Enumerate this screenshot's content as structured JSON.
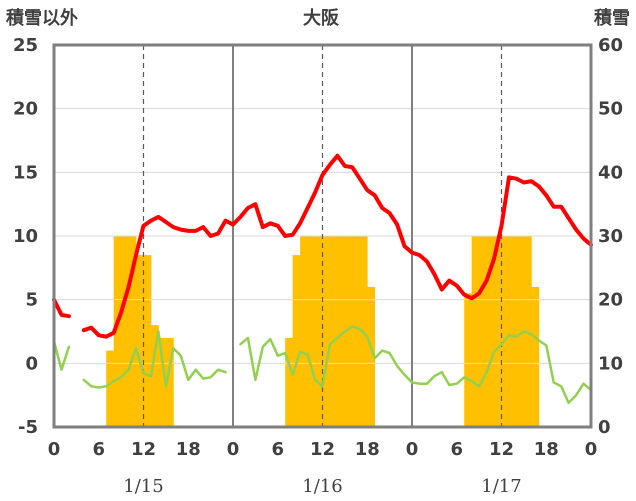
{
  "chart_data": {
    "type": "line",
    "title": "大阪",
    "y_left_label": "積雪以外",
    "y_right_label": "積雪",
    "y_left_range": [
      -5,
      25
    ],
    "y_right_range": [
      0,
      60
    ],
    "y_left_ticks": [
      "-5",
      "0",
      "5",
      "10",
      "15",
      "20",
      "25"
    ],
    "y_right_ticks": [
      "0",
      "10",
      "20",
      "30",
      "40",
      "50",
      "60"
    ],
    "x_tick_labels": [
      "0",
      "6",
      "12",
      "18",
      "0",
      "6",
      "12",
      "18",
      "0",
      "6",
      "12",
      "18",
      "0"
    ],
    "date_labels": [
      "1/15",
      "1/16",
      "1/17"
    ],
    "x_range_hours": [
      0,
      72
    ],
    "grid": "dashed verticals at 12h, solid day dividers",
    "colors": {
      "temperature": "#ff0000",
      "humidity_like": "#92d050",
      "snow": "#ffc000",
      "baseline": "#7030a0",
      "frame": "#7f7f7f"
    },
    "series": [
      {
        "style": "line",
        "axis": "left",
        "color": "#ff0000",
        "points": [
          [
            0,
            5
          ],
          [
            1,
            3.8
          ],
          [
            2,
            3.7
          ],
          [
            null,
            null
          ],
          [
            4,
            2.6
          ],
          [
            5,
            2.8
          ],
          [
            6,
            2.2
          ],
          [
            7,
            2.1
          ],
          [
            8,
            2.4
          ],
          [
            9,
            4
          ],
          [
            10,
            6
          ],
          [
            11,
            8.5
          ],
          [
            12,
            10.8
          ],
          [
            13,
            11.2
          ],
          [
            14,
            11.5
          ],
          [
            15,
            11.1
          ],
          [
            16,
            10.7
          ],
          [
            17,
            10.5
          ],
          [
            18,
            10.4
          ],
          [
            19,
            10.4
          ],
          [
            20,
            10.7
          ],
          [
            21,
            10
          ],
          [
            22,
            10.2
          ],
          [
            23,
            11.2
          ],
          [
            24,
            10.9
          ],
          [
            25,
            11.5
          ],
          [
            26,
            12.2
          ],
          [
            27,
            12.5
          ],
          [
            28,
            10.7
          ],
          [
            29,
            11
          ],
          [
            30,
            10.8
          ],
          [
            31,
            10
          ],
          [
            32,
            10.1
          ],
          [
            33,
            11
          ],
          [
            34,
            12.2
          ],
          [
            35,
            13.4
          ],
          [
            36,
            14.8
          ],
          [
            37,
            15.6
          ],
          [
            38,
            16.3
          ],
          [
            39,
            15.5
          ],
          [
            40,
            15.4
          ],
          [
            41,
            14.5
          ],
          [
            42,
            13.6
          ],
          [
            43,
            13.2
          ],
          [
            44,
            12.2
          ],
          [
            45,
            11.8
          ],
          [
            46,
            10.9
          ],
          [
            47,
            9.2
          ],
          [
            48,
            8.7
          ],
          [
            49,
            8.5
          ],
          [
            50,
            8
          ],
          [
            51,
            7
          ],
          [
            52,
            5.8
          ],
          [
            53,
            6.5
          ],
          [
            54,
            6.1
          ],
          [
            55,
            5.4
          ],
          [
            56,
            5.1
          ],
          [
            57,
            5.5
          ],
          [
            58,
            6.5
          ],
          [
            59,
            8.2
          ],
          [
            60,
            10.8
          ],
          [
            61,
            14.6
          ],
          [
            62,
            14.5
          ],
          [
            63,
            14.2
          ],
          [
            64,
            14.3
          ],
          [
            65,
            13.9
          ],
          [
            66,
            13.2
          ],
          [
            67,
            12.3
          ],
          [
            68,
            12.3
          ],
          [
            69,
            11.4
          ],
          [
            70,
            10.5
          ],
          [
            71,
            9.8
          ],
          [
            72,
            9.3
          ]
        ]
      },
      {
        "style": "line",
        "axis": "left",
        "color": "#92d050",
        "points": [
          [
            0,
            1.7
          ],
          [
            1,
            -0.5
          ],
          [
            2,
            1.3
          ],
          [
            null,
            null
          ],
          [
            4,
            -1.3
          ],
          [
            5,
            -1.8
          ],
          [
            6,
            -1.9
          ],
          [
            7,
            -1.8
          ],
          [
            8,
            -1.4
          ],
          [
            9,
            -1.1
          ],
          [
            10,
            -0.5
          ],
          [
            11,
            1.2
          ],
          [
            12,
            -0.8
          ],
          [
            13,
            -1
          ],
          [
            14,
            2.5
          ],
          [
            15,
            -1.8
          ],
          [
            16,
            1.2
          ],
          [
            17,
            0.6
          ],
          [
            18,
            -1.3
          ],
          [
            19,
            -0.5
          ],
          [
            20,
            -1.2
          ],
          [
            21,
            -1.1
          ],
          [
            22,
            -0.5
          ],
          [
            23,
            -0.7
          ],
          [
            null,
            null
          ],
          [
            25,
            1.5
          ],
          [
            26,
            2
          ],
          [
            27,
            -1.3
          ],
          [
            28,
            1.3
          ],
          [
            29,
            1.9
          ],
          [
            30,
            0.6
          ],
          [
            31,
            0.8
          ],
          [
            32,
            -0.9
          ],
          [
            33,
            0.9
          ],
          [
            34,
            0.7
          ],
          [
            35,
            -1.3
          ],
          [
            36,
            -1.8
          ],
          [
            37,
            1.5
          ],
          [
            38,
            2
          ],
          [
            39,
            2.5
          ],
          [
            40,
            2.9
          ],
          [
            41,
            2.7
          ],
          [
            42,
            2.1
          ],
          [
            43,
            0.4
          ],
          [
            44,
            1
          ],
          [
            45,
            0.8
          ],
          [
            46,
            -0.2
          ],
          [
            47,
            -0.9
          ],
          [
            48,
            -1.5
          ],
          [
            49,
            -1.6
          ],
          [
            50,
            -1.6
          ],
          [
            51,
            -1
          ],
          [
            52,
            -0.7
          ],
          [
            53,
            -1.7
          ],
          [
            54,
            -1.6
          ],
          [
            55,
            -1.1
          ],
          [
            56,
            -1.4
          ],
          [
            57,
            -1.8
          ],
          [
            58,
            -0.7
          ],
          [
            59,
            0.9
          ],
          [
            60,
            1.5
          ],
          [
            61,
            2.2
          ],
          [
            62,
            2.1
          ],
          [
            63,
            2.5
          ],
          [
            64,
            2.3
          ],
          [
            65,
            1.8
          ],
          [
            66,
            1.4
          ],
          [
            67,
            -1.5
          ],
          [
            68,
            -1.8
          ],
          [
            69,
            -3.1
          ],
          [
            70,
            -2.5
          ],
          [
            71,
            -1.6
          ],
          [
            72,
            -2.1
          ]
        ]
      },
      {
        "style": "step-bar",
        "axis": "right",
        "color": "#ffc000",
        "values": [
          [
            7,
            8,
            12
          ],
          [
            8,
            9,
            30
          ],
          [
            9,
            10,
            30
          ],
          [
            10,
            11,
            30
          ],
          [
            11,
            12,
            27
          ],
          [
            12,
            13,
            27
          ],
          [
            13,
            14,
            16
          ],
          [
            14,
            15,
            14
          ],
          [
            15,
            16,
            14
          ],
          [
            31,
            32,
            14
          ],
          [
            32,
            33,
            27
          ],
          [
            33,
            34,
            30
          ],
          [
            34,
            35,
            30
          ],
          [
            35,
            36,
            30
          ],
          [
            36,
            37,
            30
          ],
          [
            37,
            38,
            30
          ],
          [
            38,
            39,
            30
          ],
          [
            39,
            40,
            30
          ],
          [
            40,
            41,
            30
          ],
          [
            41,
            42,
            30
          ],
          [
            42,
            43,
            22
          ],
          [
            55,
            56,
            21
          ],
          [
            56,
            57,
            30
          ],
          [
            57,
            58,
            30
          ],
          [
            58,
            59,
            30
          ],
          [
            59,
            60,
            30
          ],
          [
            60,
            61,
            30
          ],
          [
            61,
            62,
            30
          ],
          [
            62,
            63,
            30
          ],
          [
            63,
            64,
            30
          ],
          [
            64,
            65,
            22
          ]
        ]
      },
      {
        "style": "line",
        "axis": "left",
        "color": "#7030a0",
        "points": [
          [
            0,
            -5
          ],
          [
            72,
            -5
          ]
        ]
      }
    ]
  }
}
